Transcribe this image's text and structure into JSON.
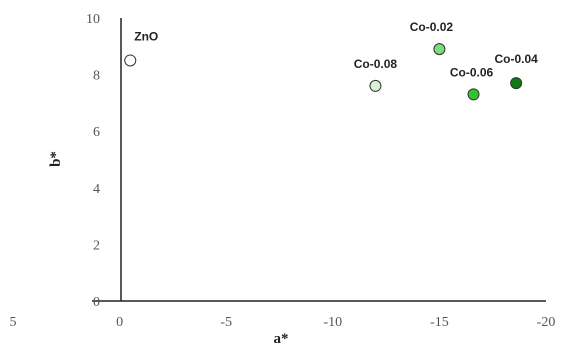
{
  "chart_data": {
    "type": "scatter",
    "title": "",
    "xlabel": "a*",
    "ylabel": "b*",
    "xlim": [
      5,
      -20
    ],
    "ylim": [
      0,
      10
    ],
    "x_axis_reversed": true,
    "grid": false,
    "legend": "none",
    "x_ticks": [
      5,
      0,
      -5,
      -10,
      -15,
      -20
    ],
    "y_ticks": [
      0,
      2,
      4,
      6,
      8,
      10
    ],
    "x_tick_labels": [
      "5",
      "0",
      "-5",
      "-10",
      "-15",
      "-20"
    ],
    "y_tick_labels": [
      "0",
      "2",
      "4",
      "6",
      "8",
      "10"
    ],
    "points": [
      {
        "label": "ZnO",
        "x": -0.5,
        "y": 8.5,
        "color": "#ffffff"
      },
      {
        "label": "Co-0.08",
        "x": -12.0,
        "y": 7.6,
        "color": "#d8f0d4"
      },
      {
        "label": "Co-0.02",
        "x": -15.0,
        "y": 8.9,
        "color": "#7fdc7a"
      },
      {
        "label": "Co-0.06",
        "x": -16.6,
        "y": 7.3,
        "color": "#2ec52e"
      },
      {
        "label": "Co-0.04",
        "x": -18.6,
        "y": 7.7,
        "color": "#0e7a14"
      }
    ]
  }
}
